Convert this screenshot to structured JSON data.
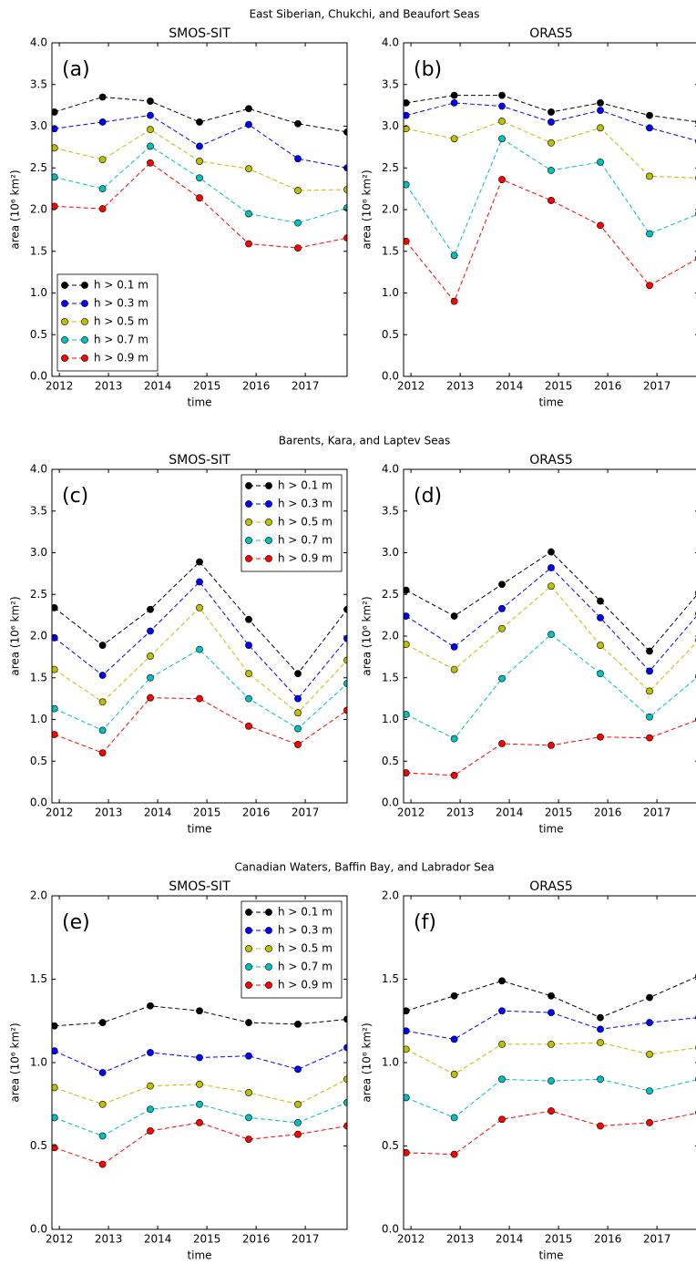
{
  "suptitles": [
    "East Siberian, Chukchi, and Beaufort Seas",
    "Barents, Kara, and Laptev Seas",
    "Canadian Waters, Baffin Bay, and Labrador Sea"
  ],
  "chart_data": [
    {
      "type": "line",
      "title": "SMOS-SIT",
      "panel_label": "(a)",
      "xlabel": "time",
      "ylabel": "area (10⁶ km²)",
      "legend": "lower left",
      "x": [
        2011.9,
        2012.88,
        2013.85,
        2014.85,
        2015.85,
        2016.85,
        2017.85
      ],
      "xlim": [
        2011.85,
        2017.85
      ],
      "xticks": [
        2012,
        2013,
        2014,
        2015,
        2016,
        2017
      ],
      "ylim": [
        0,
        4
      ],
      "yticks": [
        {
          "value": 0,
          "label": "0.0"
        },
        {
          "value": 0.5,
          "label": "0.5"
        },
        {
          "value": 1,
          "label": "1.0"
        },
        {
          "value": 1.5,
          "label": "1.5"
        },
        {
          "value": 2,
          "label": "2.0"
        },
        {
          "value": 2.5,
          "label": "2.5"
        },
        {
          "value": 3,
          "label": "3.0"
        },
        {
          "value": 3.5,
          "label": "3.5"
        },
        {
          "value": 4,
          "label": "4.0"
        }
      ],
      "series": [
        {
          "name": "h > 0.1 m",
          "color": "#000000",
          "values": [
            3.17,
            3.35,
            3.3,
            3.05,
            3.21,
            3.03,
            2.93
          ]
        },
        {
          "name": "h > 0.3 m",
          "color": "#0000ff",
          "values": [
            2.97,
            3.05,
            3.13,
            2.76,
            3.02,
            2.61,
            2.5
          ]
        },
        {
          "name": "h > 0.5 m",
          "color": "#bfbf00",
          "values": [
            2.74,
            2.6,
            2.96,
            2.58,
            2.49,
            2.23,
            2.24
          ]
        },
        {
          "name": "h > 0.7 m",
          "color": "#00bfbf",
          "values": [
            2.39,
            2.25,
            2.76,
            2.38,
            1.95,
            1.84,
            2.02
          ]
        },
        {
          "name": "h > 0.9 m",
          "color": "#ff0000",
          "values": [
            2.04,
            2.01,
            2.56,
            2.14,
            1.59,
            1.54,
            1.66
          ]
        }
      ]
    },
    {
      "type": "line",
      "title": "ORAS5",
      "panel_label": "(b)",
      "xlabel": "time",
      "ylabel": "area (10⁶ km²)",
      "x": [
        2011.9,
        2012.88,
        2013.85,
        2014.85,
        2015.85,
        2016.85,
        2017.85
      ],
      "xlim": [
        2011.85,
        2017.85
      ],
      "xticks": [
        2012,
        2013,
        2014,
        2015,
        2016,
        2017
      ],
      "ylim": [
        0,
        4
      ],
      "yticks": [
        {
          "value": 0,
          "label": "0.0"
        },
        {
          "value": 0.5,
          "label": "0.5"
        },
        {
          "value": 1,
          "label": "1.0"
        },
        {
          "value": 1.5,
          "label": "1.5"
        },
        {
          "value": 2,
          "label": "2.0"
        },
        {
          "value": 2.5,
          "label": "2.5"
        },
        {
          "value": 3,
          "label": "3.0"
        },
        {
          "value": 3.5,
          "label": "3.5"
        },
        {
          "value": 4,
          "label": "4.0"
        }
      ],
      "series": [
        {
          "color": "#000000",
          "values": [
            3.28,
            3.37,
            3.37,
            3.17,
            3.28,
            3.13,
            3.05
          ]
        },
        {
          "color": "#0000ff",
          "values": [
            3.13,
            3.28,
            3.24,
            3.05,
            3.19,
            2.98,
            2.82
          ]
        },
        {
          "color": "#bfbf00",
          "values": [
            2.97,
            2.85,
            3.06,
            2.8,
            2.98,
            2.4,
            2.38
          ]
        },
        {
          "color": "#00bfbf",
          "values": [
            2.3,
            1.45,
            2.85,
            2.47,
            2.57,
            1.71,
            1.95
          ]
        },
        {
          "color": "#ff0000",
          "values": [
            1.62,
            0.9,
            2.36,
            2.11,
            1.81,
            1.09,
            1.42
          ]
        }
      ]
    },
    {
      "type": "line",
      "title": "SMOS-SIT",
      "panel_label": "(c)",
      "xlabel": "time",
      "ylabel": "area (10⁶ km²)",
      "legend": "upper right",
      "x": [
        2011.9,
        2012.88,
        2013.85,
        2014.85,
        2015.85,
        2016.85,
        2017.85
      ],
      "xlim": [
        2011.85,
        2017.85
      ],
      "xticks": [
        2012,
        2013,
        2014,
        2015,
        2016,
        2017
      ],
      "ylim": [
        0,
        4
      ],
      "yticks": [
        {
          "value": 0,
          "label": "0.0"
        },
        {
          "value": 0.5,
          "label": "0.5"
        },
        {
          "value": 1,
          "label": "1.0"
        },
        {
          "value": 1.5,
          "label": "1.5"
        },
        {
          "value": 2,
          "label": "2.0"
        },
        {
          "value": 2.5,
          "label": "2.5"
        },
        {
          "value": 3,
          "label": "3.0"
        },
        {
          "value": 3.5,
          "label": "3.5"
        },
        {
          "value": 4,
          "label": "4.0"
        }
      ],
      "series": [
        {
          "name": "h > 0.1 m",
          "color": "#000000",
          "values": [
            2.34,
            1.89,
            2.32,
            2.89,
            2.2,
            1.55,
            2.32
          ]
        },
        {
          "name": "h > 0.3 m",
          "color": "#0000ff",
          "values": [
            1.98,
            1.53,
            2.06,
            2.65,
            1.89,
            1.25,
            1.97
          ]
        },
        {
          "name": "h > 0.5 m",
          "color": "#bfbf00",
          "values": [
            1.6,
            1.21,
            1.76,
            2.34,
            1.55,
            1.08,
            1.71
          ]
        },
        {
          "name": "h > 0.7 m",
          "color": "#00bfbf",
          "values": [
            1.13,
            0.87,
            1.5,
            1.84,
            1.25,
            0.89,
            1.43
          ]
        },
        {
          "name": "h > 0.9 m",
          "color": "#ff0000",
          "values": [
            0.82,
            0.6,
            1.26,
            1.25,
            0.92,
            0.7,
            1.11
          ]
        }
      ]
    },
    {
      "type": "line",
      "title": "ORAS5",
      "panel_label": "(d)",
      "xlabel": "time",
      "ylabel": "area (10⁶ km²)",
      "x": [
        2011.9,
        2012.88,
        2013.85,
        2014.85,
        2015.85,
        2016.85,
        2017.85
      ],
      "xlim": [
        2011.85,
        2017.85
      ],
      "xticks": [
        2012,
        2013,
        2014,
        2015,
        2016,
        2017
      ],
      "ylim": [
        0,
        4
      ],
      "yticks": [
        {
          "value": 0,
          "label": "0.0"
        },
        {
          "value": 0.5,
          "label": "0.5"
        },
        {
          "value": 1,
          "label": "1.0"
        },
        {
          "value": 1.5,
          "label": "1.5"
        },
        {
          "value": 2,
          "label": "2.0"
        },
        {
          "value": 2.5,
          "label": "2.5"
        },
        {
          "value": 3,
          "label": "3.0"
        },
        {
          "value": 3.5,
          "label": "3.5"
        },
        {
          "value": 4,
          "label": "4.0"
        }
      ],
      "series": [
        {
          "color": "#000000",
          "values": [
            2.55,
            2.24,
            2.62,
            3.01,
            2.42,
            1.82,
            2.52
          ]
        },
        {
          "color": "#0000ff",
          "values": [
            2.24,
            1.87,
            2.33,
            2.82,
            2.22,
            1.58,
            2.27
          ]
        },
        {
          "color": "#bfbf00",
          "values": [
            1.9,
            1.6,
            2.09,
            2.6,
            1.89,
            1.34,
            1.95
          ]
        },
        {
          "color": "#00bfbf",
          "values": [
            1.06,
            0.77,
            1.49,
            2.02,
            1.55,
            1.03,
            1.52
          ]
        },
        {
          "color": "#ff0000",
          "values": [
            0.36,
            0.33,
            0.71,
            0.69,
            0.79,
            0.78,
            1.0
          ]
        }
      ]
    },
    {
      "type": "line",
      "title": "SMOS-SIT",
      "panel_label": "(e)",
      "xlabel": "time",
      "ylabel": "area (10⁶ km²)",
      "legend": "upper right",
      "x": [
        2011.9,
        2012.88,
        2013.85,
        2014.85,
        2015.85,
        2016.85,
        2017.85
      ],
      "xlim": [
        2011.85,
        2017.85
      ],
      "xticks": [
        2012,
        2013,
        2014,
        2015,
        2016,
        2017
      ],
      "ylim": [
        0,
        2
      ],
      "yticks": [
        {
          "value": 0,
          "label": "0.0"
        },
        {
          "value": 0.5,
          "label": "0.5"
        },
        {
          "value": 1,
          "label": "1.0"
        },
        {
          "value": 1.5,
          "label": "1.5"
        },
        {
          "value": 2,
          "label": "2.0"
        }
      ],
      "series": [
        {
          "name": "h > 0.1 m",
          "color": "#000000",
          "values": [
            1.22,
            1.24,
            1.34,
            1.31,
            1.24,
            1.23,
            1.26
          ]
        },
        {
          "name": "h > 0.3 m",
          "color": "#0000ff",
          "values": [
            1.07,
            0.94,
            1.06,
            1.03,
            1.04,
            0.96,
            1.09
          ]
        },
        {
          "name": "h > 0.5 m",
          "color": "#bfbf00",
          "values": [
            0.85,
            0.75,
            0.86,
            0.87,
            0.82,
            0.75,
            0.9
          ]
        },
        {
          "name": "h > 0.7 m",
          "color": "#00bfbf",
          "values": [
            0.67,
            0.56,
            0.72,
            0.75,
            0.67,
            0.64,
            0.76
          ]
        },
        {
          "name": "h > 0.9 m",
          "color": "#ff0000",
          "values": [
            0.49,
            0.39,
            0.59,
            0.64,
            0.54,
            0.57,
            0.62
          ]
        }
      ]
    },
    {
      "type": "line",
      "title": "ORAS5",
      "panel_label": "(f)",
      "xlabel": "time",
      "ylabel": "area (10⁶ km²)",
      "x": [
        2011.9,
        2012.88,
        2013.85,
        2014.85,
        2015.85,
        2016.85,
        2017.85
      ],
      "xlim": [
        2011.85,
        2017.85
      ],
      "xticks": [
        2012,
        2013,
        2014,
        2015,
        2016,
        2017
      ],
      "ylim": [
        0,
        2
      ],
      "yticks": [
        {
          "value": 0,
          "label": "0.0"
        },
        {
          "value": 0.5,
          "label": "0.5"
        },
        {
          "value": 1,
          "label": "1.0"
        },
        {
          "value": 1.5,
          "label": "1.5"
        },
        {
          "value": 2,
          "label": "2.0"
        }
      ],
      "series": [
        {
          "color": "#000000",
          "values": [
            1.31,
            1.4,
            1.49,
            1.4,
            1.27,
            1.39,
            1.52
          ]
        },
        {
          "color": "#0000ff",
          "values": [
            1.19,
            1.14,
            1.31,
            1.3,
            1.2,
            1.24,
            1.27
          ]
        },
        {
          "color": "#bfbf00",
          "values": [
            1.08,
            0.93,
            1.11,
            1.11,
            1.12,
            1.05,
            1.09
          ]
        },
        {
          "color": "#00bfbf",
          "values": [
            0.79,
            0.67,
            0.9,
            0.89,
            0.9,
            0.83,
            0.9
          ]
        },
        {
          "color": "#ff0000",
          "values": [
            0.46,
            0.45,
            0.66,
            0.71,
            0.62,
            0.64,
            0.7
          ]
        }
      ]
    }
  ]
}
